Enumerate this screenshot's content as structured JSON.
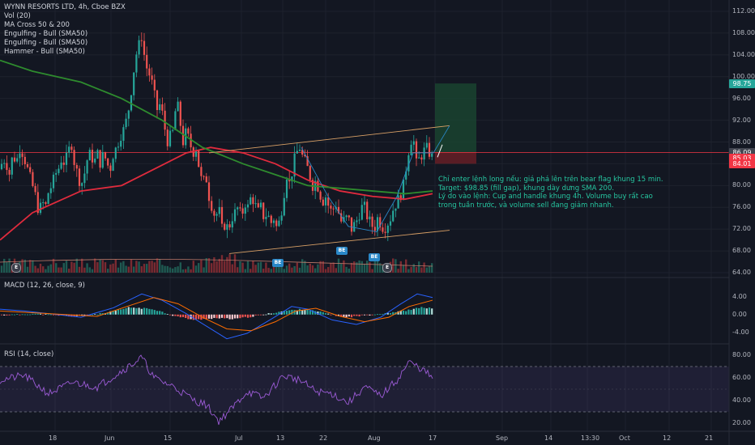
{
  "header": {
    "symbol": "WYNN RESORTS LTD, 4h, Cboe BZX",
    "indicators": [
      "Vol (20)",
      "MA Cross 50 & 200",
      "Engulfing - Bull (SMA50)",
      "Engulfing - Bull (SMA50)",
      "Hammer - Bull (SMA50)"
    ]
  },
  "macd_label": "MACD (12, 26, close, 9)",
  "rsi_label": "RSI (14, close)",
  "annotation": {
    "lines": [
      "Chỉ enter lệnh long nếu: giá phá lên trên bear flag khung 15 min.",
      "Target: $98.85 (fill gap), khung dày dưng SMA 200.",
      "Lý do vào lệnh: Cup and handle khung 4h. Volume buy rất cao trong tuần trước, và volume sell đang giảm nhanh."
    ]
  },
  "badges": [
    {
      "text": "BE",
      "color": "#2a88c8"
    },
    {
      "text": "BE",
      "color": "#2a88c8"
    },
    {
      "text": "BE",
      "color": "#2a88c8"
    }
  ],
  "earnings_marker": "E",
  "price_tags": [
    {
      "value": "98.75",
      "color": "#26a69a"
    },
    {
      "value": "86.09",
      "color": "#434651"
    },
    {
      "value": "85.03",
      "color": "#f23645"
    },
    {
      "value": "84.01",
      "color": "#f23645"
    }
  ],
  "chart_data": [
    {
      "type": "candlestick",
      "title": "WYNN RESORTS LTD, 4h, Cboe BZX",
      "ylim": [
        64,
        112
      ],
      "y_ticks": [
        "112.00",
        "108.00",
        "104.00",
        "100.00",
        "96.00",
        "92.00",
        "88.00",
        "84.00",
        "80.00",
        "76.00",
        "72.00",
        "68.00",
        "64.00"
      ],
      "x_ticks": [
        "18",
        "Jun",
        "15",
        "Jul",
        "13",
        "22",
        "Aug",
        "17",
        "Sep",
        "14",
        "13:30",
        "Oct",
        "12",
        "21"
      ],
      "close_path": [
        [
          0,
          83
        ],
        [
          4,
          85
        ],
        [
          8,
          84
        ],
        [
          12,
          82
        ],
        [
          16,
          86
        ],
        [
          20,
          84
        ],
        [
          24,
          87
        ],
        [
          28,
          86
        ],
        [
          32,
          84
        ],
        [
          36,
          82
        ],
        [
          40,
          80
        ],
        [
          44,
          78
        ],
        [
          48,
          75
        ],
        [
          52,
          77
        ],
        [
          56,
          76
        ],
        [
          60,
          79
        ],
        [
          64,
          80
        ],
        [
          68,
          82
        ],
        [
          72,
          83
        ],
        [
          76,
          85
        ],
        [
          80,
          84
        ],
        [
          84,
          86
        ],
        [
          88,
          88
        ],
        [
          92,
          84
        ],
        [
          96,
          82
        ],
        [
          100,
          80
        ],
        [
          104,
          82
        ],
        [
          108,
          85
        ],
        [
          112,
          86
        ],
        [
          116,
          84
        ],
        [
          120,
          86
        ],
        [
          124,
          84
        ],
        [
          128,
          86
        ],
        [
          132,
          84
        ],
        [
          136,
          83
        ],
        [
          140,
          86
        ],
        [
          144,
          87
        ],
        [
          148,
          89
        ],
        [
          152,
          90
        ],
        [
          156,
          92
        ],
        [
          160,
          95
        ],
        [
          164,
          100
        ],
        [
          168,
          104
        ],
        [
          172,
          106
        ],
        [
          176,
          108
        ],
        [
          178,
          104
        ],
        [
          182,
          101
        ],
        [
          186,
          100
        ],
        [
          190,
          97
        ],
        [
          194,
          94
        ],
        [
          198,
          95
        ],
        [
          202,
          92
        ],
        [
          206,
          88
        ],
        [
          210,
          89
        ],
        [
          214,
          90
        ],
        [
          218,
          96
        ],
        [
          222,
          92
        ],
        [
          226,
          88
        ],
        [
          230,
          90
        ],
        [
          234,
          88
        ],
        [
          238,
          86
        ],
        [
          242,
          87
        ],
        [
          246,
          83
        ],
        [
          250,
          80
        ],
        [
          254,
          82
        ],
        [
          258,
          78
        ],
        [
          262,
          76
        ],
        [
          266,
          74
        ],
        [
          270,
          76
        ],
        [
          274,
          72
        ],
        [
          278,
          73
        ],
        [
          282,
          72
        ],
        [
          286,
          74
        ],
        [
          290,
          75
        ],
        [
          294,
          76
        ],
        [
          298,
          74
        ],
        [
          302,
          77
        ],
        [
          306,
          76
        ],
        [
          310,
          78
        ],
        [
          314,
          77
        ],
        [
          318,
          75
        ],
        [
          322,
          76
        ],
        [
          326,
          74
        ],
        [
          330,
          75
        ],
        [
          334,
          73
        ],
        [
          338,
          74
        ],
        [
          342,
          72
        ],
        [
          346,
          74
        ],
        [
          350,
          78
        ],
        [
          354,
          82
        ],
        [
          358,
          80
        ],
        [
          362,
          84
        ],
        [
          366,
          86
        ],
        [
          370,
          87
        ],
        [
          374,
          85
        ],
        [
          378,
          84
        ],
        [
          382,
          82
        ],
        [
          386,
          80
        ],
        [
          390,
          81
        ],
        [
          394,
          79
        ],
        [
          398,
          77
        ],
        [
          402,
          78
        ],
        [
          406,
          76
        ],
        [
          410,
          75
        ],
        [
          414,
          77
        ],
        [
          418,
          75
        ],
        [
          422,
          73
        ],
        [
          426,
          74
        ],
        [
          430,
          74
        ],
        [
          434,
          72
        ],
        [
          438,
          73
        ],
        [
          442,
          74
        ],
        [
          446,
          76
        ],
        [
          450,
          76
        ],
        [
          454,
          74
        ],
        [
          458,
          73
        ],
        [
          462,
          72
        ],
        [
          466,
          74
        ],
        [
          470,
          73
        ],
        [
          474,
          72
        ],
        [
          478,
          73
        ],
        [
          482,
          74
        ],
        [
          486,
          76
        ],
        [
          490,
          77
        ],
        [
          494,
          78
        ],
        [
          498,
          80
        ],
        [
          502,
          84
        ],
        [
          506,
          88
        ],
        [
          510,
          89
        ],
        [
          514,
          84
        ],
        [
          518,
          85
        ],
        [
          522,
          86
        ],
        [
          526,
          87
        ],
        [
          530,
          86
        ],
        [
          534,
          85
        ]
      ],
      "series": [
        {
          "name": "MA 50",
          "color": "#e02b3d",
          "values": [
            [
              0,
              70
            ],
            [
              40,
              75
            ],
            [
              100,
              79
            ],
            [
              150,
              80
            ],
            [
              190,
              83
            ],
            [
              230,
              86
            ],
            [
              260,
              87
            ],
            [
              300,
              86
            ],
            [
              340,
              84
            ],
            [
              380,
              81
            ],
            [
              420,
              79
            ],
            [
              460,
              78
            ],
            [
              500,
              77.5
            ],
            [
              534,
              78.5
            ]
          ]
        },
        {
          "name": "MA 200",
          "color": "#2e8b2e",
          "values": [
            [
              0,
              103
            ],
            [
              40,
              101
            ],
            [
              100,
              99
            ],
            [
              150,
              96
            ],
            [
              200,
              92
            ],
            [
              250,
              87
            ],
            [
              300,
              84
            ],
            [
              340,
              82
            ],
            [
              380,
              80
            ],
            [
              420,
              79.5
            ],
            [
              460,
              79
            ],
            [
              500,
              78.5
            ],
            [
              534,
              79
            ]
          ]
        }
      ],
      "trendlines": [
        {
          "color": "#d9a066",
          "points": [
            [
              258,
              86
            ],
            [
              555,
              91
            ]
          ]
        },
        {
          "color": "#d9a066",
          "points": [
            [
              283,
              67.5
            ],
            [
              555,
              71.8
            ]
          ]
        },
        {
          "color": "#2a88c8",
          "points": [
            [
              372,
              87
            ],
            [
              405,
              78
            ],
            [
              430,
              72.5
            ],
            [
              465,
              71.5
            ],
            [
              490,
              78
            ],
            [
              510,
              86
            ],
            [
              535,
              86
            ],
            [
              555,
              91
            ]
          ]
        }
      ],
      "position": {
        "entry": 86.09,
        "target": 98.75,
        "stop": 84.01,
        "start_x": 537,
        "end_x": 588
      },
      "horizontal_lines": [
        {
          "value": 86.09,
          "color": "#f23645"
        }
      ]
    },
    {
      "type": "bar",
      "title": "MACD (12, 26, close, 9)",
      "ylim": [
        -6,
        7
      ],
      "y_ticks": [
        "4.00",
        "0.00",
        "-4.00"
      ]
    },
    {
      "type": "line",
      "title": "RSI (14, close)",
      "ylim": [
        15,
        85
      ],
      "y_ticks": [
        "80.00",
        "60.00",
        "40.00",
        "20.00"
      ],
      "bands": [
        70,
        30
      ]
    }
  ]
}
